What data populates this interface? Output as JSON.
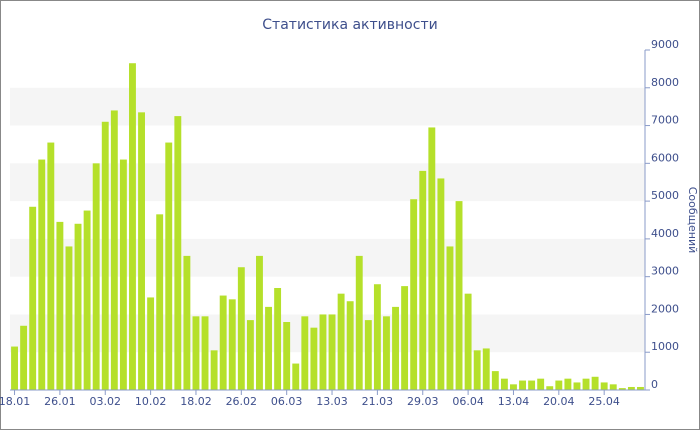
{
  "chart_data": {
    "type": "bar",
    "title": "Статистика активности",
    "y_label": "Сообщений",
    "categories": [
      "18.01",
      null,
      null,
      null,
      null,
      "26.01",
      null,
      null,
      null,
      null,
      "03.02",
      null,
      null,
      null,
      null,
      "10.02",
      null,
      null,
      null,
      null,
      "18.02",
      null,
      null,
      null,
      null,
      "26.02",
      null,
      null,
      null,
      null,
      "06.03",
      null,
      null,
      null,
      null,
      "13.03",
      null,
      null,
      null,
      null,
      "21.03",
      null,
      null,
      null,
      null,
      "29.03",
      null,
      null,
      null,
      null,
      "06.04",
      null,
      null,
      null,
      null,
      "13.04",
      null,
      null,
      null,
      null,
      "20.04",
      null,
      null,
      null,
      null,
      "25.04",
      null,
      null,
      null,
      null
    ],
    "values": [
      1150,
      1700,
      4850,
      6100,
      6550,
      4450,
      3800,
      4400,
      4750,
      6000,
      7100,
      7400,
      6100,
      8650,
      7350,
      2450,
      4650,
      6550,
      7250,
      3550,
      1950,
      1950,
      1050,
      2500,
      2400,
      3250,
      1850,
      3550,
      2200,
      2700,
      1800,
      700,
      1950,
      1650,
      2000,
      2000,
      2550,
      2350,
      3550,
      1850,
      2800,
      1950,
      2200,
      2750,
      5050,
      5800,
      6950,
      5600,
      3800,
      5000,
      2550,
      1050,
      1100,
      500,
      300,
      150,
      250,
      250,
      300,
      100,
      250,
      300,
      200,
      300,
      350,
      200,
      150,
      50,
      80,
      80
    ],
    "color": "#b5e02a",
    "ylim": [
      0,
      9000
    ],
    "yticks": [
      0,
      1000,
      2000,
      3000,
      4000,
      5000,
      6000,
      7000,
      8000,
      9000
    ],
    "grid": "bands"
  }
}
